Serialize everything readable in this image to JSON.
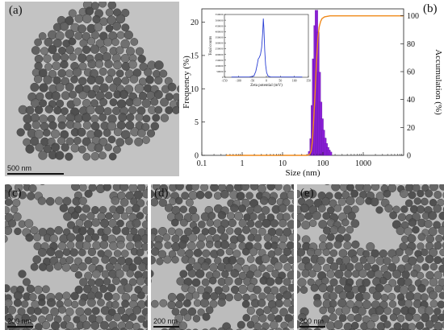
{
  "panels": {
    "a": {
      "label": "(a)",
      "scale": "500 nm"
    },
    "b": {
      "label": "(b)"
    },
    "c": {
      "label": "(c)",
      "scale": "200 nm"
    },
    "d": {
      "label": "(d)",
      "scale": "200 nm"
    },
    "e": {
      "label": "(e)",
      "scale": "200 nm"
    }
  },
  "colors": {
    "hist": "#8a1fd6",
    "curve": "#f08a1a",
    "inset": "#2a3fd4"
  },
  "chart_data": [
    {
      "type": "bar",
      "xlabel": "Size (nm)",
      "ylabel": "Frequency (%)",
      "y2label": "Accumulation (%)",
      "xscale": "log",
      "xlim": [
        0.1,
        10000
      ],
      "ylim": [
        0,
        22
      ],
      "y2lim": [
        0,
        105
      ],
      "xticks": [
        "0.1",
        "1",
        "10",
        "100",
        "1000"
      ],
      "yticks": [
        "0",
        "5",
        "10",
        "15",
        "20"
      ],
      "y2ticks": [
        "0",
        "20",
        "40",
        "60",
        "80",
        "100"
      ],
      "bins": [
        {
          "x": 47,
          "v": 0.6
        },
        {
          "x": 51,
          "v": 2.5
        },
        {
          "x": 55,
          "v": 7.5
        },
        {
          "x": 59,
          "v": 14.5
        },
        {
          "x": 64,
          "v": 19.5
        },
        {
          "x": 69,
          "v": 21.8
        },
        {
          "x": 75,
          "v": 18.5
        },
        {
          "x": 81,
          "v": 12.5
        },
        {
          "x": 88,
          "v": 8.0
        },
        {
          "x": 95,
          "v": 5.5
        },
        {
          "x": 103,
          "v": 3.8
        },
        {
          "x": 112,
          "v": 2.6
        },
        {
          "x": 121,
          "v": 1.8
        },
        {
          "x": 131,
          "v": 1.2
        },
        {
          "x": 142,
          "v": 0.8
        },
        {
          "x": 154,
          "v": 0.5
        }
      ],
      "accumulation": [
        [
          0.4,
          0
        ],
        [
          40,
          0
        ],
        [
          47,
          0.6
        ],
        [
          51,
          3
        ],
        [
          55,
          10
        ],
        [
          59,
          25
        ],
        [
          64,
          44
        ],
        [
          69,
          66
        ],
        [
          75,
          84
        ],
        [
          81,
          92
        ],
        [
          88,
          96
        ],
        [
          95,
          98
        ],
        [
          110,
          99.3
        ],
        [
          150,
          100
        ],
        [
          10000,
          100
        ]
      ]
    },
    {
      "type": "line",
      "title": "inset",
      "xlabel": "Zeta potential (mV)",
      "ylabel": "Total counts",
      "xlim": [
        -150,
        150
      ],
      "ylim": [
        0,
        550000
      ],
      "xticks": [
        "-150",
        "-100",
        "-50",
        "0",
        "50",
        "100",
        "150"
      ],
      "yticks": [
        "0",
        "50000",
        "100000",
        "150000",
        "200000",
        "250000",
        "300000",
        "350000",
        "400000",
        "450000",
        "500000",
        "550000"
      ],
      "points": [
        [
          -125,
          2000
        ],
        [
          -60,
          3000
        ],
        [
          -45,
          10000
        ],
        [
          -38,
          50000
        ],
        [
          -33,
          110000
        ],
        [
          -29,
          160000
        ],
        [
          -25,
          175000
        ],
        [
          -21,
          200000
        ],
        [
          -17,
          260000
        ],
        [
          -13,
          400000
        ],
        [
          -11,
          515000
        ],
        [
          -9,
          430000
        ],
        [
          -6,
          240000
        ],
        [
          -3,
          110000
        ],
        [
          1,
          40000
        ],
        [
          6,
          10000
        ],
        [
          15,
          3000
        ],
        [
          128,
          2000
        ]
      ]
    }
  ]
}
